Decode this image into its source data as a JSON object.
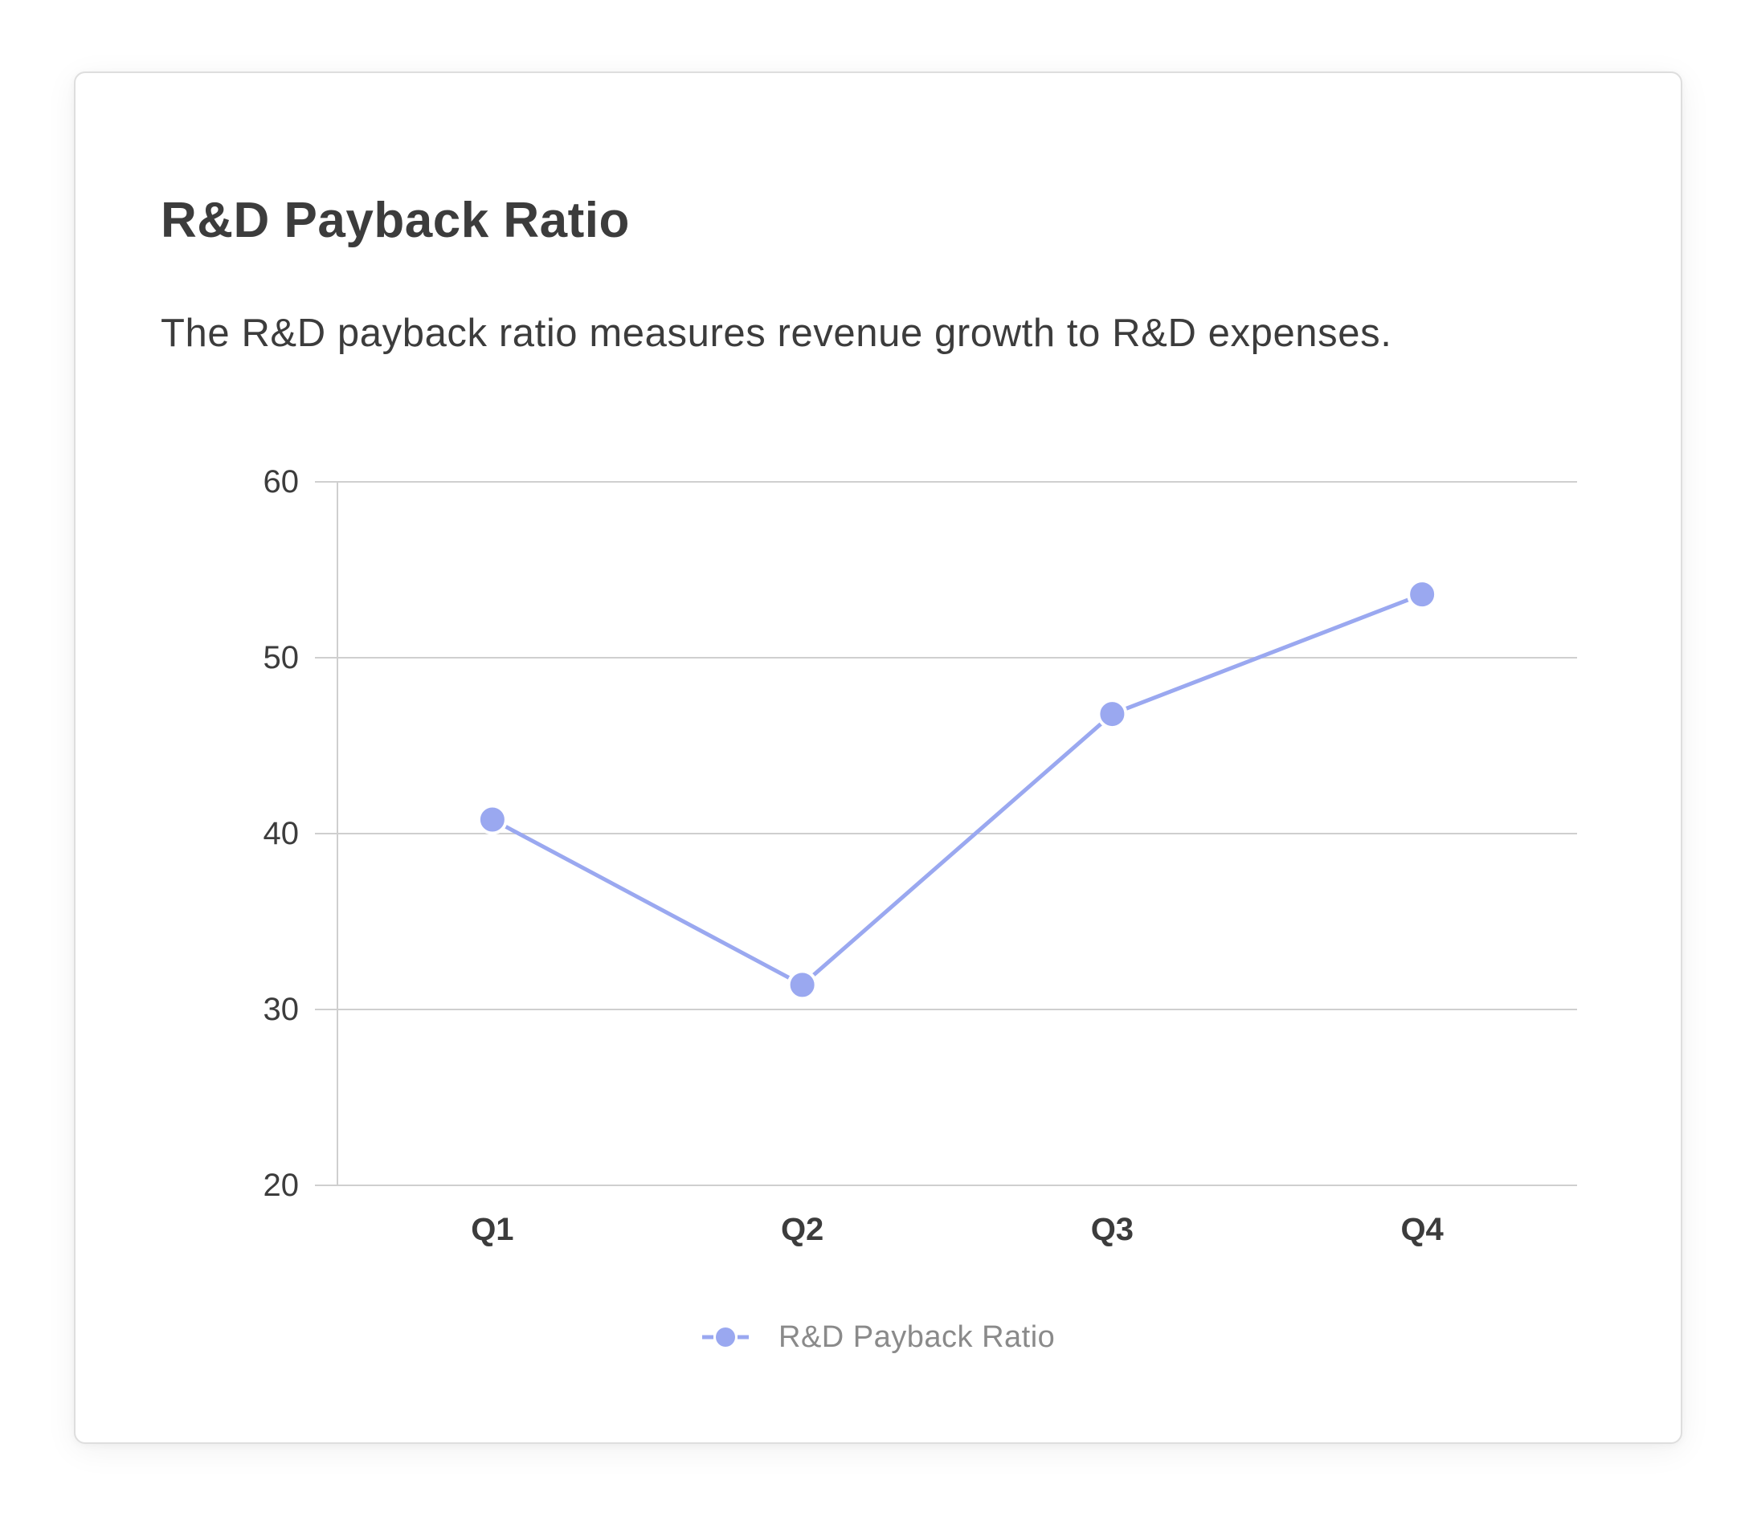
{
  "card": {
    "title": "R&D Payback Ratio",
    "subtitle": "The R&D payback ratio measures revenue growth to R&D expenses."
  },
  "chart_data": {
    "type": "line",
    "categories": [
      "Q1",
      "Q2",
      "Q3",
      "Q4"
    ],
    "series": [
      {
        "name": "R&D Payback Ratio",
        "values": [
          40.8,
          31.4,
          46.8,
          53.6
        ],
        "color": "#9aa8f0"
      }
    ],
    "ylim": [
      20,
      60
    ],
    "yticks": [
      20,
      30,
      40,
      50,
      60
    ],
    "grid": true,
    "legend_position": "bottom-center",
    "xlabel": "",
    "ylabel": ""
  },
  "colors": {
    "series": "#9aa8f0",
    "grid": "#cfcfcf",
    "text": "#3c3c3c",
    "legend_text": "#8a8a8a"
  }
}
